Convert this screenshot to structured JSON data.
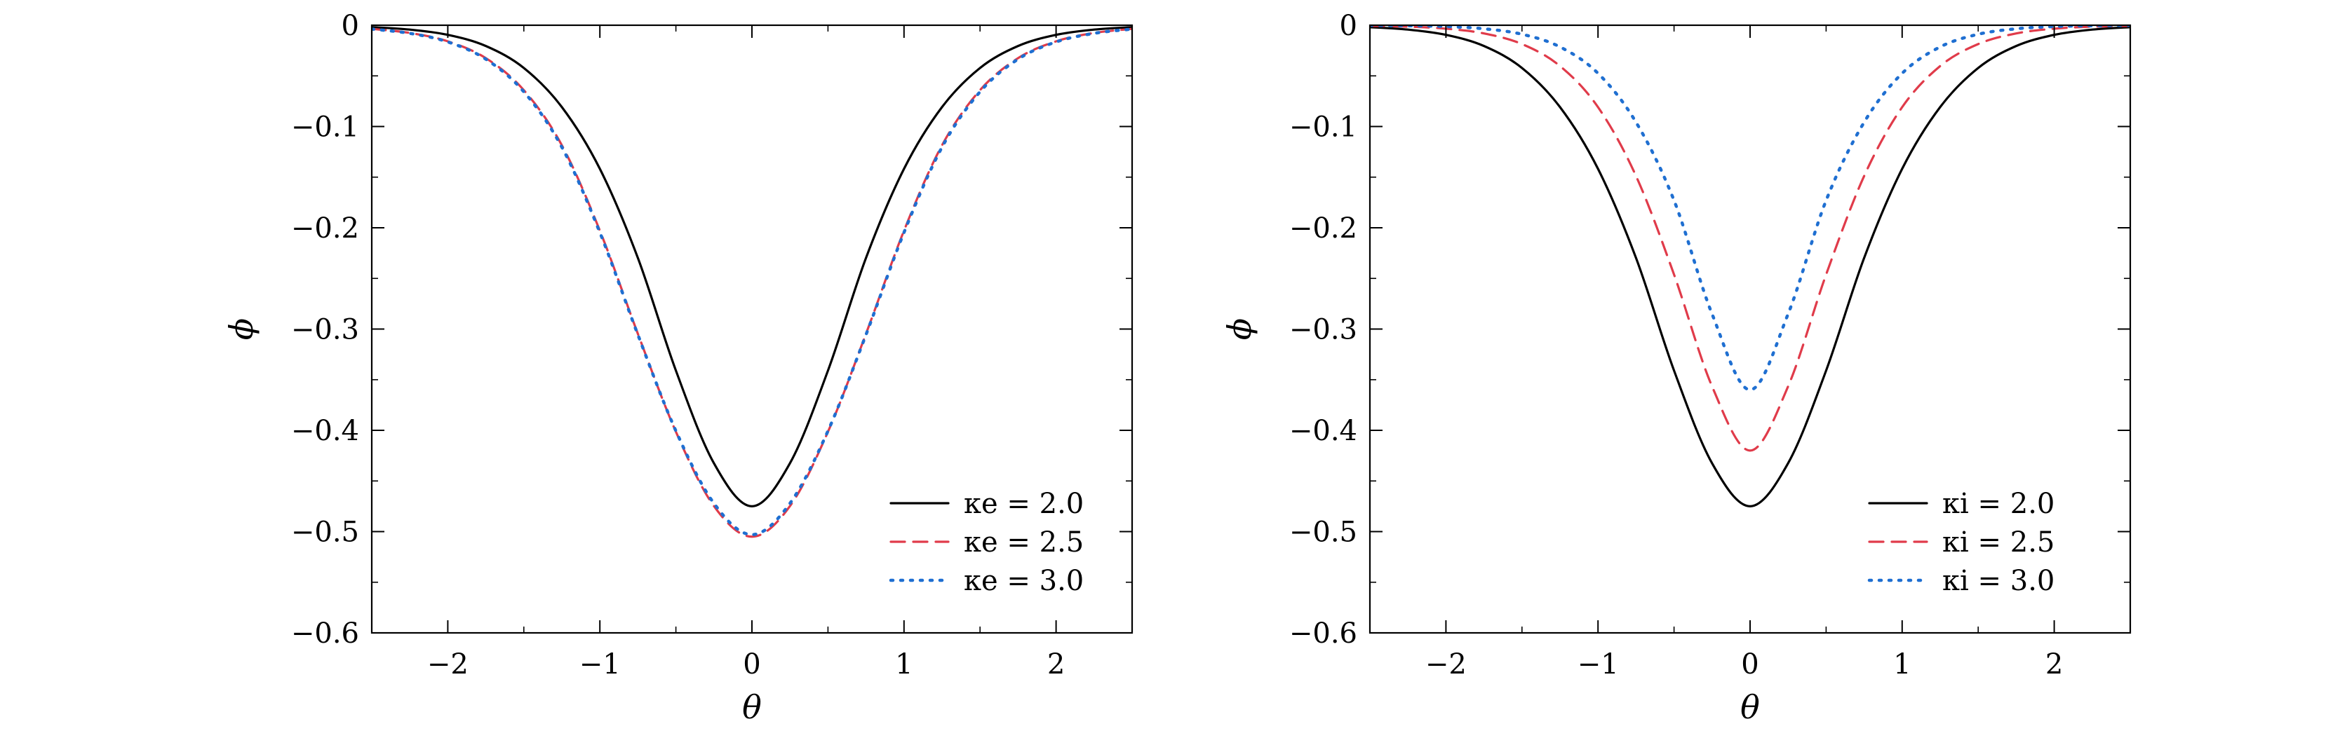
{
  "chart_data": [
    {
      "type": "line",
      "title": "",
      "xlabel": "θ",
      "ylabel": "ϕ",
      "xlim": [
        -2.5,
        2.5
      ],
      "ylim": [
        -0.6,
        0
      ],
      "x_ticks": [
        -2,
        -1,
        0,
        1,
        2
      ],
      "x_tick_labels": [
        "−2",
        "−1",
        "0",
        "1",
        "2"
      ],
      "y_ticks": [
        0,
        -0.1,
        -0.2,
        -0.3,
        -0.4,
        -0.5,
        -0.6
      ],
      "y_tick_labels": [
        "0",
        "−0.1",
        "−0.2",
        "−0.3",
        "−0.4",
        "−0.5",
        "−0.6"
      ],
      "grid": false,
      "legend_position": "bottom-right",
      "x": [
        -2.5,
        -2.25,
        -2.0,
        -1.75,
        -1.5,
        -1.25,
        -1.0,
        -0.75,
        -0.5,
        -0.25,
        0.0,
        0.25,
        0.5,
        0.75,
        1.0,
        1.25,
        1.5,
        1.75,
        2.0,
        2.25,
        2.5
      ],
      "series": [
        {
          "name": "κe = 2.0",
          "color": "#000000",
          "dash": "solid",
          "values": [
            -0.0019,
            -0.0043,
            -0.0095,
            -0.0205,
            -0.0422,
            -0.0808,
            -0.1418,
            -0.2298,
            -0.341,
            -0.4325,
            -0.475,
            -0.4325,
            -0.341,
            -0.2298,
            -0.1418,
            -0.0808,
            -0.0422,
            -0.0205,
            -0.0095,
            -0.0043,
            -0.0019
          ]
        },
        {
          "name": "κe = 2.5",
          "color": "#e03b4a",
          "dash": "dashed",
          "values": [
            -0.0036,
            -0.0076,
            -0.0159,
            -0.0325,
            -0.0641,
            -0.1185,
            -0.2028,
            -0.3047,
            -0.4014,
            -0.4748,
            -0.505,
            -0.4748,
            -0.4014,
            -0.3047,
            -0.2028,
            -0.1185,
            -0.0641,
            -0.0325,
            -0.0159,
            -0.0076,
            -0.0036
          ]
        },
        {
          "name": "κe = 3.0",
          "color": "#1f6fd1",
          "dash": "dotted",
          "values": [
            -0.0038,
            -0.008,
            -0.0165,
            -0.0335,
            -0.0657,
            -0.1204,
            -0.2046,
            -0.3056,
            -0.4006,
            -0.4721,
            -0.503,
            -0.4721,
            -0.4006,
            -0.3056,
            -0.2046,
            -0.1204,
            -0.0657,
            -0.0335,
            -0.0165,
            -0.008,
            -0.0038
          ]
        }
      ]
    },
    {
      "type": "line",
      "title": "",
      "xlabel": "θ",
      "ylabel": "ϕ",
      "xlim": [
        -2.5,
        2.5
      ],
      "ylim": [
        -0.6,
        0
      ],
      "x_ticks": [
        -2,
        -1,
        0,
        1,
        2
      ],
      "x_tick_labels": [
        "−2",
        "−1",
        "0",
        "1",
        "2"
      ],
      "y_ticks": [
        0,
        -0.1,
        -0.2,
        -0.3,
        -0.4,
        -0.5,
        -0.6
      ],
      "y_tick_labels": [
        "0",
        "−0.1",
        "−0.2",
        "−0.3",
        "−0.4",
        "−0.5",
        "−0.6"
      ],
      "grid": false,
      "legend_position": "bottom-right",
      "x": [
        -2.5,
        -2.25,
        -2.0,
        -1.75,
        -1.5,
        -1.25,
        -1.0,
        -0.75,
        -0.5,
        -0.25,
        0.0,
        0.25,
        0.5,
        0.75,
        1.0,
        1.25,
        1.5,
        1.75,
        2.0,
        2.25,
        2.5
      ],
      "series": [
        {
          "name": "κi = 2.0",
          "color": "#000000",
          "dash": "solid",
          "values": [
            -0.0019,
            -0.0043,
            -0.0095,
            -0.0205,
            -0.0422,
            -0.0808,
            -0.1418,
            -0.2298,
            -0.341,
            -0.4325,
            -0.475,
            -0.4325,
            -0.341,
            -0.2298,
            -0.1418,
            -0.0808,
            -0.0422,
            -0.0205,
            -0.0095,
            -0.0043,
            -0.0019
          ]
        },
        {
          "name": "κi = 2.5",
          "color": "#e03b4a",
          "dash": "dashed",
          "values": [
            -0.0006,
            -0.0014,
            -0.0034,
            -0.0081,
            -0.0186,
            -0.0403,
            -0.0809,
            -0.1489,
            -0.2462,
            -0.3566,
            -0.42,
            -0.3566,
            -0.2462,
            -0.1489,
            -0.0809,
            -0.0403,
            -0.0186,
            -0.0081,
            -0.0034,
            -0.0014,
            -0.0006
          ]
        },
        {
          "name": "κi = 3.0",
          "color": "#1f6fd1",
          "dash": "dotted",
          "values": [
            -0.0002,
            -0.0005,
            -0.0013,
            -0.0035,
            -0.0089,
            -0.0214,
            -0.0475,
            -0.0958,
            -0.173,
            -0.2851,
            -0.36,
            -0.2851,
            -0.173,
            -0.0958,
            -0.0475,
            -0.0214,
            -0.0089,
            -0.0035,
            -0.0013,
            -0.0005,
            -0.0002
          ]
        }
      ]
    }
  ]
}
